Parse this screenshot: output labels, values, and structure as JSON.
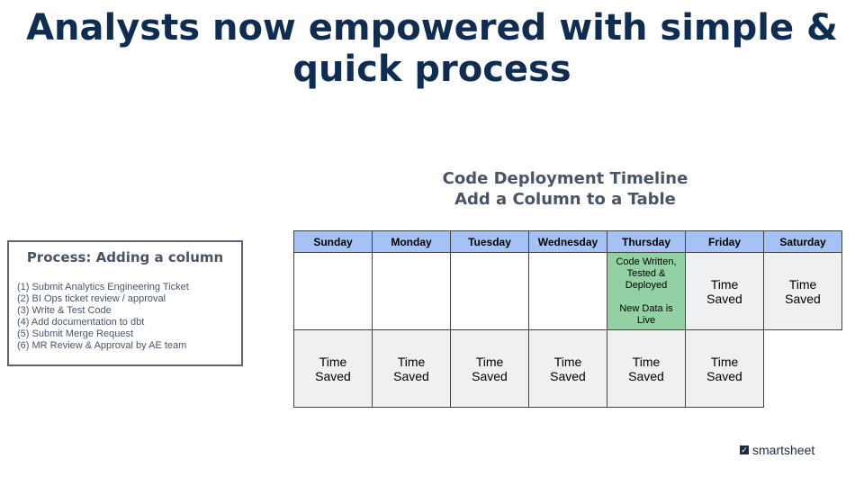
{
  "title": "Analysts now empowered with simple & quick process",
  "timeline": {
    "title_line1": "Code Deployment Timeline",
    "title_line2": "Add a Column to a Table",
    "days": [
      "Sunday",
      "Monday",
      "Tuesday",
      "Wednesday",
      "Thursday",
      "Friday",
      "Saturday"
    ],
    "time_saved_line1": "Time",
    "time_saved_line2": "Saved",
    "thursday_lines": [
      "Code Written,",
      "Tested &",
      "Deployed",
      "",
      "New Data is",
      "Live"
    ]
  },
  "process": {
    "title": "Process: Adding a column",
    "steps": [
      "(1) Submit Analytics Engineering Ticket",
      "(2) BI Ops ticket review / approval",
      "(3) Write & Test Code",
      "(4) Add documentation to dbt",
      "(5) Submit Merge Request",
      "(6) MR Review & Approval by AE team"
    ]
  },
  "logo": {
    "text": "smartsheet",
    "icon": "checkbox-icon"
  },
  "colors": {
    "header": "#a4c2f4",
    "deployed": "#93d1a4",
    "time_saved": "#eff0f2",
    "title": "#0f2d52"
  }
}
